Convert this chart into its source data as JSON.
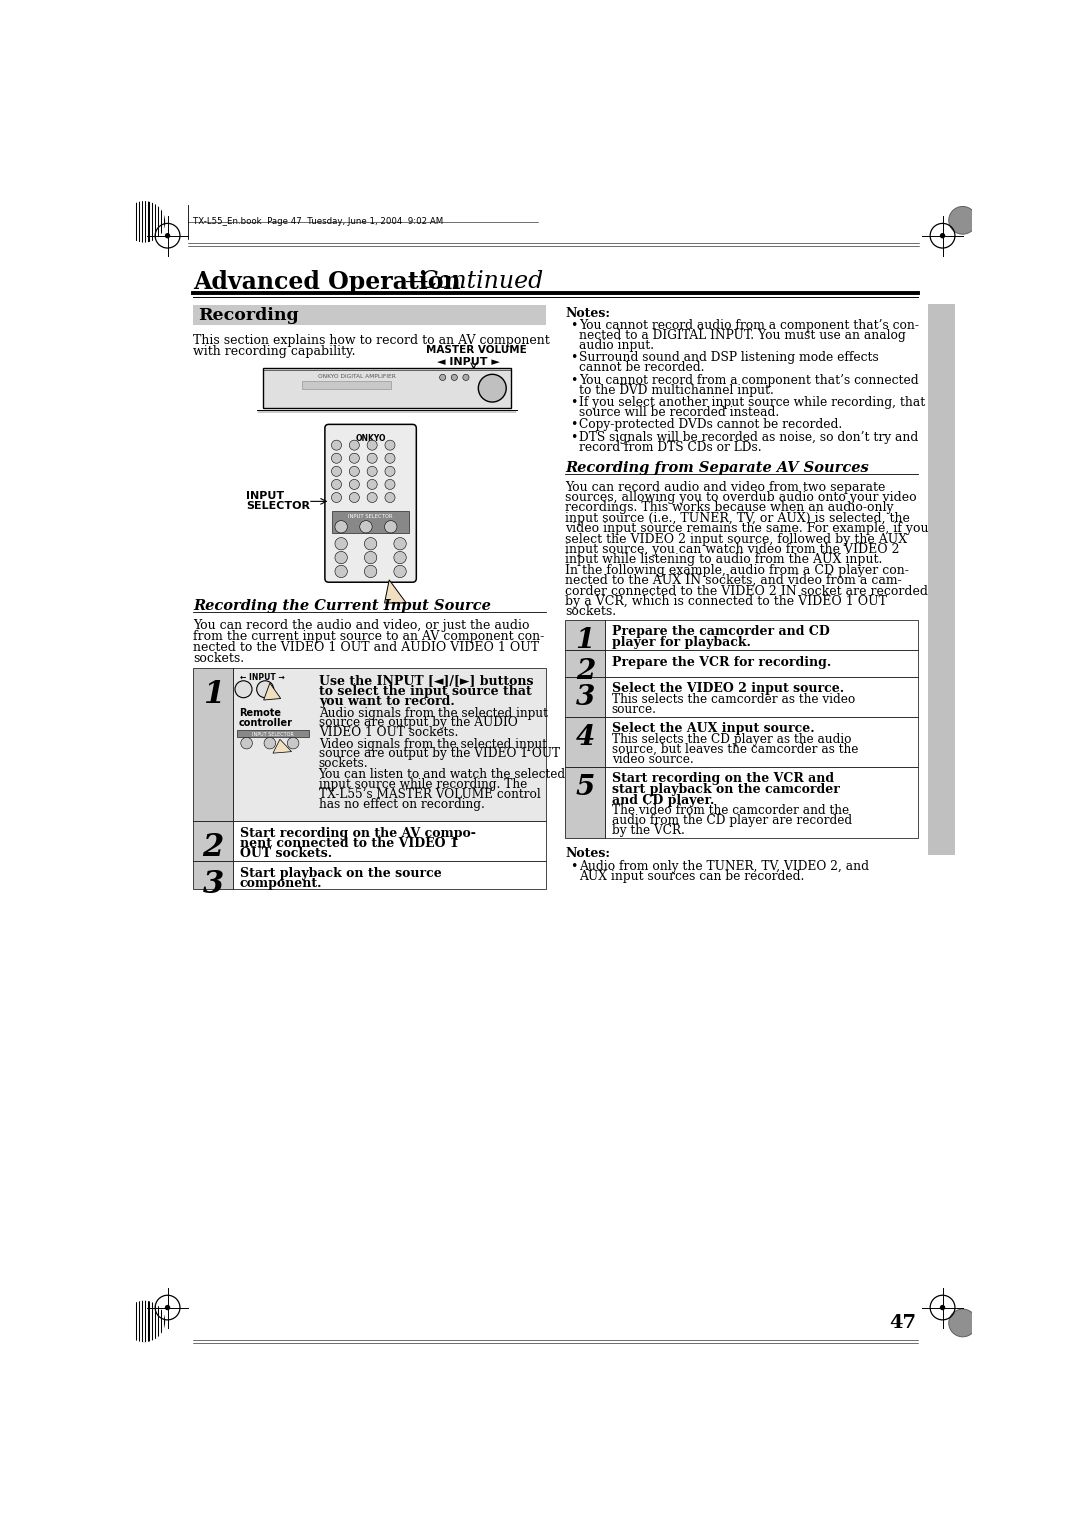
{
  "page_bg": "#ffffff",
  "file_info": "TX-L55_En.book  Page 47  Tuesday, June 1, 2004  9:02 AM",
  "section_title": "Recording",
  "section_title_bg": "#c8c8c8",
  "intro_text1": "This section explains how to record to an AV component",
  "intro_text2": "with recording capability.",
  "master_volume_label": "MASTER VOLUME",
  "input_label": "◄ INPUT ►",
  "input_selector_label1": "INPUT",
  "input_selector_label2": "SELECTOR",
  "subsection_title": "Recording the Current Input Source",
  "subsection_intro1": "You can record the audio and video, or just the audio",
  "subsection_intro2": "from the current input source to an AV component con-",
  "subsection_intro3": "nected to the VIDEO 1 OUT and AUDIO VIDEO 1 OUT",
  "subsection_intro4": "sockets.",
  "step1_bold1": "Use the INPUT [◄]/[►] buttons",
  "step1_bold2": "to select the input source that",
  "step1_bold3": "you want to record.",
  "step1_text1": "Audio signals from the selected input",
  "step1_text2": "source are output by the AUDIO",
  "step1_text3": "VIDEO 1 OUT sockets.",
  "step1_text4": "Video signals from the selected input",
  "step1_text5": "source are output by the VIDEO 1 OUT",
  "step1_text6": "sockets.",
  "step1_text7": "You can listen to and watch the selected",
  "step1_text8": "input source while recording. The",
  "step1_text9": "TX-L55’s MASTER VOLUME control",
  "step1_text10": "has no effect on recording.",
  "remote_label1": "Remote",
  "remote_label2": "controller",
  "step2_bold1": "Start recording on the AV compo-",
  "step2_bold2": "nent connected to the VIDEO 1",
  "step2_bold3": "OUT sockets.",
  "step3_bold1": "Start playback on the source",
  "step3_bold2": "component.",
  "notes_title": "Notes:",
  "notes_items": [
    "You cannot record audio from a component that’s con-\nnected to a DIGITAL INPUT. You must use an analog\naudio input.",
    "Surround sound and DSP listening mode effects\ncannot be recorded.",
    "You cannot record from a component that’s connected\nto the DVD multichannel input.",
    "If you select another input source while recording, that\nsource will be recorded instead.",
    "Copy-protected DVDs cannot be recorded.",
    "DTS signals will be recorded as noise, so don’t try and\nrecord from DTS CDs or LDs."
  ],
  "right_section_title": "Recording from Separate AV Sources",
  "right_intro_lines": [
    "You can record audio and video from two separate",
    "sources, allowing you to overdub audio onto your video",
    "recordings. This works because when an audio-only",
    "input source (i.e., TUNER, TV, or AUX) is selected, the",
    "video input source remains the same. For example, if you",
    "select the VIDEO 2 input source, followed by the AUX",
    "input source, you can watch video from the VIDEO 2",
    "input while listening to audio from the AUX input.",
    "In the following example, audio from a CD player con-",
    "nected to the AUX IN sockets, and video from a cam-",
    "corder connected to the VIDEO 2 IN socket are recorded",
    "by a VCR, which is connected to the VIDEO 1 OUT",
    "sockets."
  ],
  "rstep1_bold": "Prepare the camcorder and CD\nplayer for playback.",
  "rstep2_bold": "Prepare the VCR for recording.",
  "rstep3_bold": "Select the VIDEO 2 input source.",
  "rstep3_text": "This selects the camcorder as the video\nsource.",
  "rstep4_bold": "Select the AUX input source.",
  "rstep4_text": "This selects the CD player as the audio\nsource, but leaves the camcorder as the\nvideo source.",
  "rstep5_bold": "Start recording on the VCR and\nstart playback on the camcorder\nand CD player.",
  "rstep5_text": "The video from the camcorder and the\naudio from the CD player are recorded\nby the VCR.",
  "bottom_notes_title": "Notes:",
  "bottom_notes_items": [
    "Audio from only the TUNER, TV, VIDEO 2, and\nAUX input sources can be recorded."
  ],
  "page_number": "47",
  "step_num_bg": "#c8c8c8",
  "step_content_bg1": "#e8e8e8",
  "step_content_bg2": "#ffffff"
}
